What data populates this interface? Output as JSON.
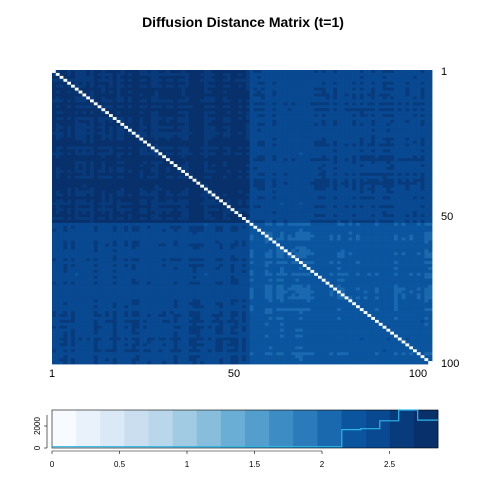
{
  "chart_data": [
    {
      "type": "heatmap",
      "title": "Diffusion Distance Matrix (t=1)",
      "n": 100,
      "x_ticks": [
        "1",
        "50",
        "100"
      ],
      "y_ticks": [
        "1",
        "50",
        "100"
      ],
      "diagonal_value": 0,
      "block_structure": {
        "split_at": 52,
        "within_first_cluster": 2.7,
        "within_second_cluster": 2.2,
        "between_clusters": 2.45
      },
      "colors": {
        "scale": [
          "#f7fbff",
          "#e9f2fb",
          "#dbe9f6",
          "#cadef0",
          "#bad6eb",
          "#a0cbe2",
          "#88bedc",
          "#6aaed6",
          "#539ecd",
          "#3d8dc4",
          "#2b7bba",
          "#1a68ae",
          "#0b559f",
          "#084991",
          "#083b7c",
          "#08306b"
        ],
        "diagonal": "#f7fbff",
        "hist_line": "#2ab7e8"
      }
    },
    {
      "type": "histogram",
      "x_ticks": [
        "0",
        "0.5",
        "1",
        "1.5",
        "2",
        "2.5"
      ],
      "y_ticks": [
        "0",
        "2000"
      ],
      "xlim": [
        0,
        2.85
      ],
      "ylim": [
        0,
        3000
      ],
      "bins": [
        {
          "x": 0.0,
          "count": 100
        },
        {
          "x": 2.14,
          "count": 1450
        },
        {
          "x": 2.28,
          "count": 1520
        },
        {
          "x": 2.42,
          "count": 2150
        },
        {
          "x": 2.56,
          "count": 3000
        },
        {
          "x": 2.7,
          "count": 2200
        },
        {
          "x": 2.85,
          "count": 0
        }
      ]
    }
  ]
}
